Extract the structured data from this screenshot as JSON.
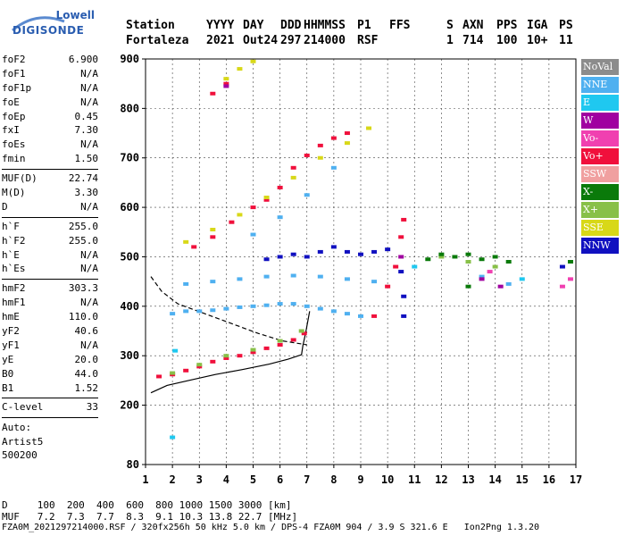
{
  "logo": {
    "line1": "Lowell",
    "line2": "DIGISONDE"
  },
  "header": {
    "labels": [
      "Station",
      "YYYY",
      "DAY",
      "DDD",
      "HHMMSS",
      "P1",
      "FFS",
      "S",
      "AXN",
      "PPS",
      "IGA",
      "PS"
    ],
    "values": [
      "Fortaleza",
      "2021",
      "Out24",
      "297",
      "214000",
      "RSF",
      "1",
      "714",
      "100",
      "10+",
      "11"
    ]
  },
  "params_groups": [
    [
      {
        "k": "foF2",
        "v": "6.900"
      },
      {
        "k": "foF1",
        "v": "N/A"
      },
      {
        "k": "foF1p",
        "v": "N/A"
      },
      {
        "k": "foE",
        "v": "N/A"
      },
      {
        "k": "foEp",
        "v": "0.45"
      },
      {
        "k": "fxI",
        "v": "7.30"
      },
      {
        "k": "foEs",
        "v": "N/A"
      },
      {
        "k": "fmin",
        "v": "1.50"
      }
    ],
    [
      {
        "k": "MUF(D)",
        "v": "22.74"
      },
      {
        "k": "M(D)",
        "v": "3.30"
      },
      {
        "k": "D",
        "v": "N/A"
      }
    ],
    [
      {
        "k": "h`F",
        "v": "255.0"
      },
      {
        "k": "h`F2",
        "v": "255.0"
      },
      {
        "k": "h`E",
        "v": "N/A"
      },
      {
        "k": "h`Es",
        "v": "N/A"
      }
    ],
    [
      {
        "k": "hmF2",
        "v": "303.3"
      },
      {
        "k": "hmF1",
        "v": "N/A"
      },
      {
        "k": "hmE",
        "v": "110.0"
      },
      {
        "k": "yF2",
        "v": "40.6"
      },
      {
        "k": "yF1",
        "v": "N/A"
      },
      {
        "k": "yE",
        "v": "20.0"
      },
      {
        "k": "B0",
        "v": "44.0"
      },
      {
        "k": "B1",
        "v": "1.52"
      }
    ],
    [
      {
        "k": "C-level",
        "v": "33"
      }
    ]
  ],
  "autoscaling": [
    "Auto:",
    "Artist5",
    "500200"
  ],
  "legend": [
    {
      "label": "NoVal",
      "color": "#8c8c8c"
    },
    {
      "label": "NNE",
      "color": "#4fb0f0"
    },
    {
      "label": "E",
      "color": "#1fc8f0"
    },
    {
      "label": "W",
      "color": "#a000a0"
    },
    {
      "label": "Vo-",
      "color": "#f040b0"
    },
    {
      "label": "Vo+",
      "color": "#f0103c"
    },
    {
      "label": "SSW",
      "color": "#f0a0a0"
    },
    {
      "label": "X-",
      "color": "#0a7a0a"
    },
    {
      "label": "X+",
      "color": "#88c048"
    },
    {
      "label": "SSE",
      "color": "#d8d818"
    },
    {
      "label": "NNW",
      "color": "#1010c0"
    }
  ],
  "footer": {
    "line1": "D     100  200  400  600  800 1000 1500 3000 [km]",
    "line2": "MUF   7.2  7.3  7.7  8.3  9.1 10.3 13.8 22.7 [MHz]",
    "line3": "FZA0M_2021297214000.RSF / 320fx256h 50 kHz 5.0 km / DPS-4 FZA0M 904 / 3.9 S 321.6 E   Ion2Png 1.3.20"
  },
  "chart_data": {
    "type": "scatter",
    "xlim": [
      1,
      17
    ],
    "ylim": [
      80,
      900
    ],
    "x_ticks": [
      1,
      2,
      3,
      4,
      5,
      6,
      7,
      8,
      9,
      10,
      11,
      12,
      13,
      14,
      15,
      16,
      17
    ],
    "y_ticks": [
      80,
      200,
      300,
      400,
      500,
      600,
      700,
      800,
      900
    ],
    "grid": true,
    "series": [
      {
        "name": "Vo+",
        "color": "#f0103c",
        "points": [
          [
            1.5,
            258
          ],
          [
            2.0,
            262
          ],
          [
            2.5,
            270
          ],
          [
            3.0,
            278
          ],
          [
            3.5,
            288
          ],
          [
            4.0,
            295
          ],
          [
            4.5,
            300
          ],
          [
            5.0,
            307
          ],
          [
            5.5,
            315
          ],
          [
            6.0,
            322
          ],
          [
            6.5,
            332
          ],
          [
            6.9,
            345
          ],
          [
            9.5,
            380
          ],
          [
            10.0,
            440
          ],
          [
            10.3,
            480
          ],
          [
            10.5,
            540
          ],
          [
            10.6,
            575
          ],
          [
            2.8,
            520
          ],
          [
            3.5,
            540
          ],
          [
            4.2,
            570
          ],
          [
            5.0,
            600
          ],
          [
            5.5,
            615
          ],
          [
            6.0,
            640
          ],
          [
            6.5,
            680
          ],
          [
            7.0,
            705
          ],
          [
            7.5,
            725
          ],
          [
            8.0,
            740
          ],
          [
            8.5,
            750
          ],
          [
            3.5,
            830
          ],
          [
            4.0,
            850
          ]
        ]
      },
      {
        "name": "X+",
        "color": "#88c048",
        "points": [
          [
            2.0,
            265
          ],
          [
            3.0,
            282
          ],
          [
            4.0,
            300
          ],
          [
            5.0,
            312
          ],
          [
            6.0,
            330
          ],
          [
            6.8,
            350
          ],
          [
            12.0,
            500
          ],
          [
            13.0,
            490
          ],
          [
            14.0,
            480
          ]
        ]
      },
      {
        "name": "SSE",
        "color": "#d8d818",
        "points": [
          [
            2.5,
            530
          ],
          [
            3.5,
            555
          ],
          [
            4.5,
            585
          ],
          [
            5.5,
            620
          ],
          [
            6.5,
            660
          ],
          [
            7.5,
            700
          ],
          [
            8.5,
            730
          ],
          [
            9.3,
            760
          ],
          [
            4.0,
            860
          ],
          [
            4.5,
            880
          ],
          [
            5.0,
            895
          ]
        ]
      },
      {
        "name": "NNE",
        "color": "#4fb0f0",
        "points": [
          [
            2.0,
            385
          ],
          [
            2.5,
            390
          ],
          [
            3.0,
            390
          ],
          [
            3.5,
            392
          ],
          [
            4.0,
            395
          ],
          [
            4.5,
            398
          ],
          [
            5.0,
            400
          ],
          [
            5.5,
            402
          ],
          [
            6.0,
            405
          ],
          [
            6.5,
            405
          ],
          [
            7.0,
            400
          ],
          [
            7.5,
            395
          ],
          [
            8.0,
            390
          ],
          [
            8.5,
            385
          ],
          [
            9.0,
            380
          ],
          [
            2.5,
            445
          ],
          [
            3.5,
            450
          ],
          [
            4.5,
            455
          ],
          [
            5.5,
            460
          ],
          [
            6.5,
            462
          ],
          [
            7.5,
            460
          ],
          [
            8.5,
            455
          ],
          [
            9.5,
            450
          ],
          [
            5.0,
            545
          ],
          [
            6.0,
            580
          ],
          [
            7.0,
            625
          ],
          [
            8.0,
            680
          ],
          [
            13.5,
            460
          ],
          [
            14.5,
            445
          ]
        ]
      },
      {
        "name": "NNW",
        "color": "#1010c0",
        "points": [
          [
            5.5,
            495
          ],
          [
            6.0,
            500
          ],
          [
            6.5,
            505
          ],
          [
            7.0,
            500
          ],
          [
            7.5,
            510
          ],
          [
            8.0,
            520
          ],
          [
            8.5,
            510
          ],
          [
            9.0,
            505
          ],
          [
            9.5,
            510
          ],
          [
            10.0,
            515
          ],
          [
            10.5,
            470
          ],
          [
            10.6,
            420
          ],
          [
            10.6,
            380
          ],
          [
            16.5,
            480
          ]
        ]
      },
      {
        "name": "X-",
        "color": "#0a7a0a",
        "points": [
          [
            11.5,
            495
          ],
          [
            12.0,
            505
          ],
          [
            12.5,
            500
          ],
          [
            13.0,
            505
          ],
          [
            13.5,
            495
          ],
          [
            14.0,
            500
          ],
          [
            14.5,
            490
          ],
          [
            13.0,
            440
          ],
          [
            16.8,
            490
          ]
        ]
      },
      {
        "name": "W",
        "color": "#a000a0",
        "points": [
          [
            4.0,
            845
          ],
          [
            10.5,
            500
          ],
          [
            13.5,
            455
          ],
          [
            14.2,
            440
          ]
        ]
      },
      {
        "name": "Vo-",
        "color": "#f040b0",
        "points": [
          [
            16.5,
            440
          ],
          [
            16.8,
            455
          ],
          [
            13.8,
            470
          ]
        ]
      },
      {
        "name": "E",
        "color": "#1fc8f0",
        "points": [
          [
            2.0,
            135
          ],
          [
            2.1,
            310
          ],
          [
            11.0,
            480
          ],
          [
            15.0,
            455
          ]
        ]
      }
    ],
    "curves": [
      {
        "name": "profile",
        "style": "solid",
        "points": [
          [
            1.2,
            225
          ],
          [
            1.8,
            240
          ],
          [
            2.6,
            250
          ],
          [
            3.6,
            262
          ],
          [
            4.6,
            272
          ],
          [
            5.6,
            283
          ],
          [
            6.3,
            293
          ],
          [
            6.8,
            302
          ],
          [
            6.85,
            320
          ],
          [
            6.95,
            345
          ],
          [
            7.1,
            390
          ]
        ]
      },
      {
        "name": "trace",
        "style": "dashed",
        "points": [
          [
            1.2,
            460
          ],
          [
            1.6,
            430
          ],
          [
            2.2,
            405
          ],
          [
            3.2,
            385
          ],
          [
            4.2,
            365
          ],
          [
            5.2,
            345
          ],
          [
            6.1,
            330
          ],
          [
            7.0,
            322
          ]
        ]
      }
    ]
  }
}
